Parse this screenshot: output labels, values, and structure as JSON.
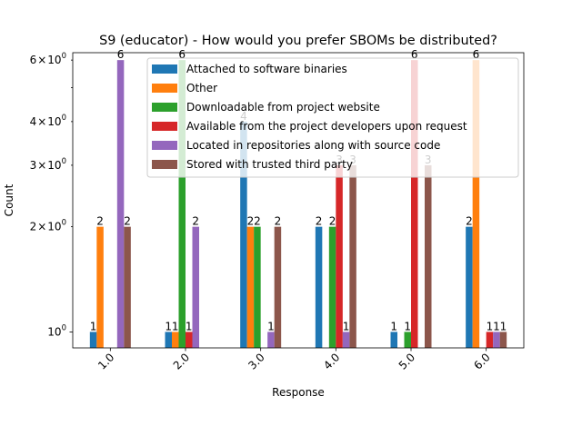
{
  "chart_data": {
    "type": "bar",
    "title": "S9 (educator) - How would you prefer SBOMs be distributed?",
    "xlabel": "Response",
    "ylabel": "Count",
    "yscale": "log",
    "ylim": [
      0.9,
      6.3
    ],
    "major_ticks": [
      {
        "value": 1,
        "base": "10",
        "exp": "0"
      }
    ],
    "minor_ticks": [
      {
        "value": 2,
        "coef": "2",
        "base": "10",
        "exp": "0"
      },
      {
        "value": 3,
        "coef": "3",
        "base": "10",
        "exp": "0"
      },
      {
        "value": 4,
        "coef": "4",
        "base": "10",
        "exp": "0"
      },
      {
        "value": 5,
        "coef": "",
        "base": "",
        "exp": ""
      },
      {
        "value": 6,
        "coef": "6",
        "base": "10",
        "exp": "0"
      }
    ],
    "categories": [
      "1.0",
      "2.0",
      "3.0",
      "4.0",
      "5.0",
      "6.0"
    ],
    "legend_position": "upper right",
    "series": [
      {
        "name": "Attached to software binaries",
        "color": "#1f77b4",
        "values": [
          1,
          1,
          4,
          2,
          1,
          2
        ]
      },
      {
        "name": "Other",
        "color": "#ff7f0e",
        "values": [
          2,
          1,
          2,
          null,
          null,
          6
        ]
      },
      {
        "name": "Downloadable from project website",
        "color": "#2ca02c",
        "values": [
          null,
          6,
          2,
          2,
          1,
          null
        ]
      },
      {
        "name": "Available from the project developers upon request",
        "color": "#d62728",
        "values": [
          null,
          1,
          null,
          3,
          6,
          1
        ]
      },
      {
        "name": "Located in repositories along with source code",
        "color": "#9467bd",
        "values": [
          6,
          2,
          1,
          1,
          null,
          1
        ]
      },
      {
        "name": "Stored with trusted third party",
        "color": "#8c564b",
        "values": [
          2,
          null,
          2,
          3,
          3,
          1
        ]
      }
    ]
  }
}
